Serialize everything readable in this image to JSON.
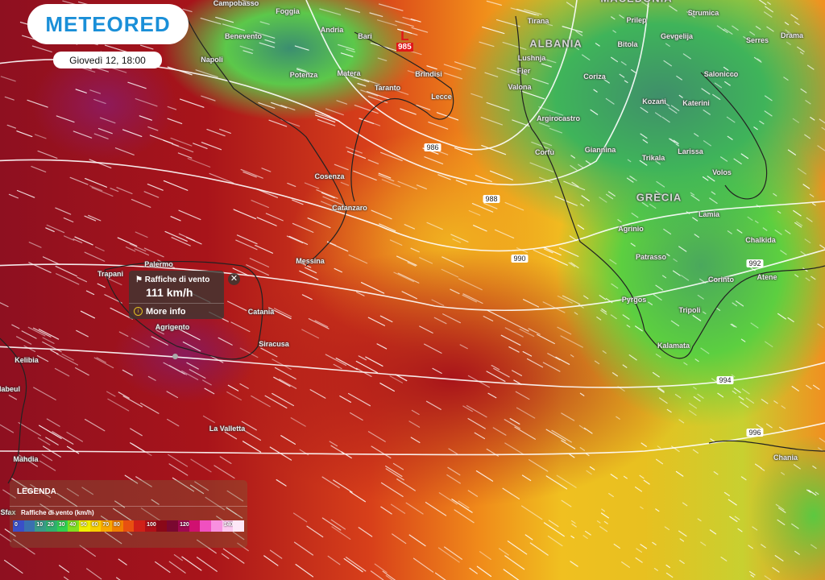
{
  "brand": {
    "name": "METEORED",
    "color": "#1a8fd8"
  },
  "datetime": "Giovedì 12, 18:00",
  "low": {
    "label": "L",
    "pressure": "985"
  },
  "isobars": [
    "986",
    "988",
    "990",
    "992",
    "994",
    "996"
  ],
  "cities": [
    "Campobasso",
    "Foggia",
    "Benevento",
    "Napoli",
    "Andria",
    "Bari",
    "Brindisi",
    "Potenza",
    "Matera",
    "Taranto",
    "Lecce",
    "Tirana",
    "Prilep",
    "Strumica",
    "Serres",
    "Drama",
    "Bitola",
    "Gevgelija",
    "Lushnja",
    "Fier",
    "Valona",
    "Coriza",
    "Salonicco",
    "Kozani",
    "Katerini",
    "Argirocastro",
    "Corfù",
    "Giannina",
    "Trikala",
    "Larissa",
    "Volos",
    "Lamia",
    "Agrinio",
    "Chalkida",
    "Patrasso",
    "Corinto",
    "Atene",
    "Pyrgos",
    "Tripoli",
    "Kalamata",
    "Chania",
    "Cosenza",
    "Catanzaro",
    "Messina",
    "Palermo",
    "Trapani",
    "Catania",
    "Agrigento",
    "Siracusa",
    "Kelibia",
    "Nabeul",
    "La Valletta",
    "Mahdia",
    "Sfax"
  ],
  "countries": [
    "ALBANIA",
    "GRECIA",
    "MACEDONIA"
  ],
  "popup": {
    "title": "Raffiche di vento",
    "value": "111 km/h",
    "more": "More info",
    "icon": "flag-icon"
  },
  "legend": {
    "title": "LEGENDA",
    "subtitle": "Raffiche di vento (km/h)",
    "colors": [
      "#3a4fc8",
      "#3a70b0",
      "#3a9a88",
      "#30b070",
      "#30d050",
      "#80e020",
      "#f0f000",
      "#f8d000",
      "#f8a800",
      "#f08000",
      "#e85010",
      "#d02018",
      "#b01018",
      "#8a0818",
      "#7a0830",
      "#a00850",
      "#d01070",
      "#f050c0",
      "#f890e0",
      "#fcc8f0",
      "#fde8f8"
    ],
    "labels": [
      "0",
      "",
      "10",
      "",
      "20",
      "",
      "30",
      "",
      "40",
      "",
      "50",
      "",
      "60",
      "",
      "70",
      "",
      "80",
      "",
      "100",
      "",
      "120",
      "",
      "140"
    ]
  }
}
